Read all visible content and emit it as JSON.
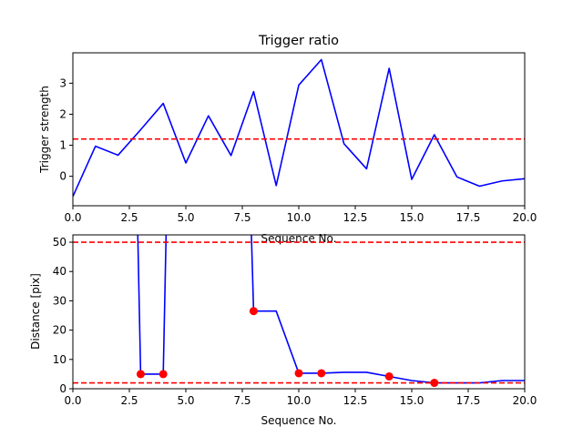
{
  "chart_data": [
    {
      "type": "line",
      "title": "Trigger ratio",
      "xlabel": "Sequence No.",
      "ylabel": "Trigger strength",
      "xlim": [
        0,
        20
      ],
      "ylim": [
        -0.95,
        3.98
      ],
      "xticks": [
        "0.0",
        "2.5",
        "5.0",
        "7.5",
        "10.0",
        "12.5",
        "15.0",
        "17.5",
        "20.0"
      ],
      "xtick_values": [
        0,
        2.5,
        5,
        7.5,
        10,
        12.5,
        15,
        17.5,
        20
      ],
      "yticks": [
        "0",
        "1",
        "2",
        "3"
      ],
      "ytick_values": [
        0,
        1,
        2,
        3
      ],
      "grid": false,
      "series": [
        {
          "color": "#0000ff",
          "style": "solid",
          "x": [
            0,
            1,
            2,
            3,
            4,
            5,
            6,
            7,
            8,
            9,
            10,
            11,
            12,
            13,
            14,
            15,
            16,
            17,
            18,
            19,
            20
          ],
          "y": [
            -0.65,
            0.97,
            0.68,
            1.5,
            2.35,
            0.43,
            1.95,
            0.67,
            2.73,
            -0.3,
            2.94,
            3.76,
            1.05,
            0.24,
            3.48,
            -0.1,
            1.34,
            -0.02,
            -0.32,
            -0.15,
            -0.08
          ]
        },
        {
          "color": "#ff0000",
          "style": "dashed",
          "x": [
            0,
            20
          ],
          "y": [
            1.2,
            1.2
          ]
        }
      ]
    },
    {
      "type": "line",
      "title": "",
      "xlabel": "Sequence No.",
      "ylabel": "Distance [pix]",
      "xlim": [
        0,
        20
      ],
      "ylim": [
        0,
        52.5
      ],
      "xticks": [
        "0.0",
        "2.5",
        "5.0",
        "7.5",
        "10.0",
        "12.5",
        "15.0",
        "17.5",
        "20.0"
      ],
      "xtick_values": [
        0,
        2.5,
        5,
        7.5,
        10,
        12.5,
        15,
        17.5,
        20
      ],
      "yticks": [
        "0",
        "10",
        "20",
        "30",
        "40",
        "50"
      ],
      "ytick_values": [
        0,
        10,
        20,
        30,
        40,
        50
      ],
      "grid": false,
      "series": [
        {
          "color": "#0000ff",
          "style": "solid",
          "x": [
            2.8,
            3,
            4,
            4.2
          ],
          "y": [
            80,
            5,
            5,
            80
          ]
        },
        {
          "color": "#0000ff",
          "style": "solid",
          "x": [
            7.8,
            8,
            9,
            10,
            11,
            12,
            13,
            14,
            15,
            16,
            17,
            18,
            19,
            20
          ],
          "y": [
            80,
            26.5,
            26.5,
            5.3,
            5.3,
            5.6,
            5.6,
            4.2,
            2.8,
            2,
            2,
            2,
            2.8,
            2.8
          ]
        },
        {
          "color": "#ff0000",
          "style": "dashed",
          "x": [
            0,
            20
          ],
          "y": [
            50,
            50
          ]
        },
        {
          "color": "#ff0000",
          "style": "dashed",
          "x": [
            0,
            20
          ],
          "y": [
            2,
            2
          ]
        },
        {
          "color": "#ff0000",
          "style": "markers",
          "x": [
            3,
            4,
            8,
            10,
            11,
            14,
            16
          ],
          "y": [
            5,
            5,
            26.5,
            5.3,
            5.3,
            4.2,
            2
          ]
        }
      ]
    }
  ]
}
